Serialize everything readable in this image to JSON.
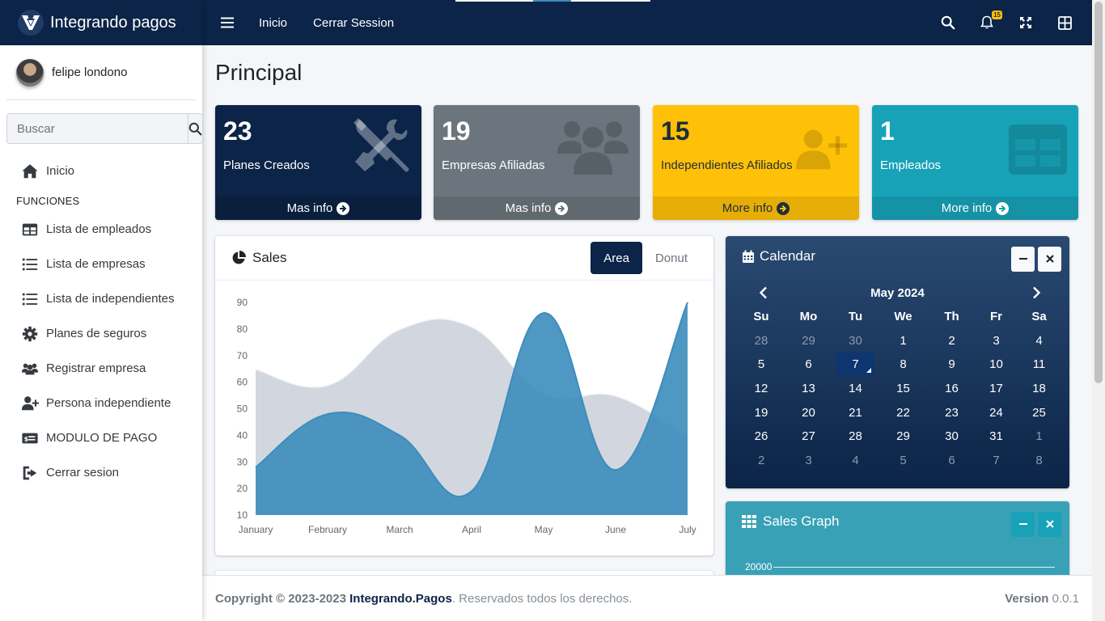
{
  "brand": {
    "name": "Integrando pagos"
  },
  "user": {
    "name": "felipe londono"
  },
  "search": {
    "placeholder": "Buscar"
  },
  "nav": {
    "home": "Inicio",
    "header": "FUNCIONES",
    "items": [
      {
        "label": "Lista de empleados",
        "icon": "table-icon"
      },
      {
        "label": "Lista de empresas",
        "icon": "list-icon"
      },
      {
        "label": "Lista de independientes",
        "icon": "list-icon"
      },
      {
        "label": "Planes de seguros",
        "icon": "gear-icon"
      },
      {
        "label": "Registrar empresa",
        "icon": "users-icon"
      },
      {
        "label": "Persona independiente",
        "icon": "user-plus-icon"
      },
      {
        "label": "MODULO DE PAGO",
        "icon": "money-icon"
      },
      {
        "label": "Cerrar sesion",
        "icon": "sign-out-icon"
      }
    ]
  },
  "topbar": {
    "links": [
      "Inicio",
      "Cerrar Session"
    ],
    "notifications": "15"
  },
  "page": {
    "title": "Principal"
  },
  "boxes": [
    {
      "value": "23",
      "label": "Planes Creados",
      "link": "Mas info",
      "bg": "#0b2447",
      "fg": "#ffffff",
      "footBg": "#091f3d",
      "icon": "tools-icon"
    },
    {
      "value": "19",
      "label": "Empresas Afiliadas",
      "link": "Mas info",
      "bg": "#6c757d",
      "fg": "#ffffff",
      "footBg": "#616970",
      "icon": "users-icon"
    },
    {
      "value": "15",
      "label": "Independientes Afiliados",
      "link": "More info",
      "bg": "#ffc107",
      "fg": "#1f2d3d",
      "footBg": "#e5ad06",
      "icon": "user-plus-icon"
    },
    {
      "value": "1",
      "label": "Empleados",
      "link": "More info",
      "bg": "#17a2b8",
      "fg": "#ffffff",
      "footBg": "#1592a6",
      "icon": "table-icon"
    }
  ],
  "sales": {
    "title": "Sales",
    "tabs": [
      "Area",
      "Donut"
    ]
  },
  "chart_data": {
    "type": "area",
    "categories": [
      "January",
      "February",
      "March",
      "April",
      "May",
      "June",
      "July"
    ],
    "series": [
      {
        "values": [
          65,
          59,
          80,
          81,
          56,
          55,
          40
        ]
      },
      {
        "values": [
          28,
          48,
          40,
          19,
          86,
          27,
          90
        ]
      }
    ],
    "ylim": [
      10,
      90
    ],
    "yticks": [
      10,
      20,
      30,
      40,
      50,
      60,
      70,
      80,
      90
    ],
    "xlabel": "",
    "ylabel": "",
    "colors": [
      "#d2d6de",
      "#3c8dbc"
    ]
  },
  "calendar": {
    "title": "Calendar",
    "month": "May 2024",
    "dow": [
      "Su",
      "Mo",
      "Tu",
      "We",
      "Th",
      "Fr",
      "Sa"
    ],
    "weeks": [
      [
        "28",
        "29",
        "30",
        "1",
        "2",
        "3",
        "4"
      ],
      [
        "5",
        "6",
        "7",
        "8",
        "9",
        "10",
        "11"
      ],
      [
        "12",
        "13",
        "14",
        "15",
        "16",
        "17",
        "18"
      ],
      [
        "19",
        "20",
        "21",
        "22",
        "23",
        "24",
        "25"
      ],
      [
        "26",
        "27",
        "28",
        "29",
        "30",
        "31",
        "1"
      ],
      [
        "2",
        "3",
        "4",
        "5",
        "6",
        "7",
        "8"
      ]
    ],
    "today": "7"
  },
  "salesGraph": {
    "title": "Sales Graph",
    "tick": "20000"
  },
  "footer": {
    "prefix": "Copyright © 2023-2023 ",
    "brand": "Integrando.Pagos",
    "suffix": ". Reservados todos los derechos.",
    "versionLabel": "Version",
    "version": "0.0.1"
  }
}
